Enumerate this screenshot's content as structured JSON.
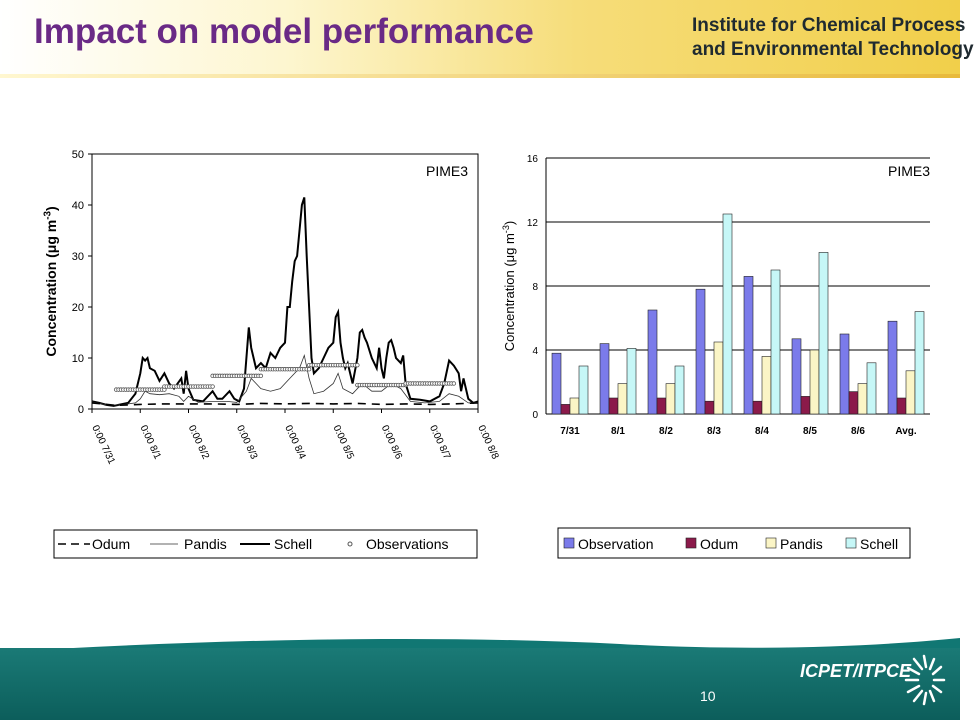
{
  "header": {
    "title": "Impact on model performance",
    "institute_line1": "Institute for Chemical Process",
    "institute_line2": "and Environmental Technology"
  },
  "footer": {
    "page_number": "10",
    "logo_text": "ICPET/ITPCE"
  },
  "colors": {
    "title": "#6a2a86",
    "footer": "#0f6663",
    "observation": "#7b7bea",
    "odum": "#8b1a4a",
    "pandis": "#fbf5c6",
    "schell": "#c6f7f7"
  },
  "chart_data": [
    {
      "type": "line",
      "annotation": "PIME3",
      "ylabel": "Concentration (μg m-3)",
      "ylim": [
        0,
        50
      ],
      "yticks": [
        0,
        10,
        20,
        30,
        40,
        50
      ],
      "xticks": [
        "0:00 7/31",
        "0:00 8/1",
        "0:00 8/2",
        "0:00 8/3",
        "0:00 8/4",
        "0:00 8/5",
        "0:00 8/6",
        "0:00 8/7",
        "0:00 8/8"
      ],
      "xlim": [
        0,
        8
      ],
      "legend_position": "bottom",
      "legend": [
        "Odum",
        "Pandis",
        "Schell",
        "Observations"
      ],
      "series": [
        {
          "name": "Schell",
          "style": "thick-solid",
          "points": [
            [
              0,
              1.5
            ],
            [
              0.15,
              1.2
            ],
            [
              0.3,
              0.8
            ],
            [
              0.45,
              0.6
            ],
            [
              0.6,
              0.9
            ],
            [
              0.75,
              1.2
            ],
            [
              0.9,
              3
            ],
            [
              1.0,
              7
            ],
            [
              1.05,
              10
            ],
            [
              1.1,
              9.5
            ],
            [
              1.15,
              10
            ],
            [
              1.2,
              8
            ],
            [
              1.3,
              7.5
            ],
            [
              1.4,
              5.5
            ],
            [
              1.5,
              7
            ],
            [
              1.6,
              5
            ],
            [
              1.7,
              4
            ],
            [
              1.85,
              6
            ],
            [
              1.9,
              3
            ],
            [
              1.95,
              7.5
            ],
            [
              2.0,
              4
            ],
            [
              2.1,
              1.8
            ],
            [
              2.3,
              1.5
            ],
            [
              2.5,
              3.5
            ],
            [
              2.6,
              2
            ],
            [
              2.7,
              2
            ],
            [
              2.85,
              3.5
            ],
            [
              2.95,
              2
            ],
            [
              3.05,
              1.5
            ],
            [
              3.15,
              4
            ],
            [
              3.25,
              16
            ],
            [
              3.3,
              12
            ],
            [
              3.4,
              8
            ],
            [
              3.5,
              9
            ],
            [
              3.6,
              8
            ],
            [
              3.7,
              11
            ],
            [
              3.8,
              10
            ],
            [
              3.9,
              12
            ],
            [
              4.0,
              13
            ],
            [
              4.05,
              20
            ],
            [
              4.1,
              20
            ],
            [
              4.15,
              25
            ],
            [
              4.2,
              29
            ],
            [
              4.25,
              30
            ],
            [
              4.35,
              40
            ],
            [
              4.4,
              41.5
            ],
            [
              4.45,
              30
            ],
            [
              4.5,
              20
            ],
            [
              4.55,
              10
            ],
            [
              4.6,
              7
            ],
            [
              4.7,
              8
            ],
            [
              4.8,
              10
            ],
            [
              4.9,
              12
            ],
            [
              5.0,
              13
            ],
            [
              5.05,
              18
            ],
            [
              5.1,
              19
            ],
            [
              5.15,
              13
            ],
            [
              5.2,
              10
            ],
            [
              5.25,
              8
            ],
            [
              5.3,
              9
            ],
            [
              5.4,
              5
            ],
            [
              5.5,
              10
            ],
            [
              5.55,
              15
            ],
            [
              5.6,
              15.5
            ],
            [
              5.65,
              14
            ],
            [
              5.7,
              13
            ],
            [
              5.8,
              10
            ],
            [
              5.9,
              8
            ],
            [
              5.95,
              12
            ],
            [
              6.0,
              8
            ],
            [
              6.05,
              6
            ],
            [
              6.1,
              10
            ],
            [
              6.15,
              13
            ],
            [
              6.2,
              13.5
            ],
            [
              6.25,
              12
            ],
            [
              6.3,
              10
            ],
            [
              6.4,
              9
            ],
            [
              6.45,
              10.5
            ],
            [
              6.5,
              5
            ],
            [
              6.6,
              2
            ],
            [
              6.8,
              1.8
            ],
            [
              7.0,
              1.5
            ],
            [
              7.2,
              2.5
            ],
            [
              7.3,
              5
            ],
            [
              7.4,
              9.5
            ],
            [
              7.5,
              8.5
            ],
            [
              7.6,
              7
            ],
            [
              7.65,
              3.5
            ],
            [
              7.7,
              6
            ],
            [
              7.8,
              2
            ],
            [
              7.9,
              1.2
            ],
            [
              8,
              1.5
            ]
          ]
        },
        {
          "name": "Pandis",
          "style": "thin-solid",
          "points": [
            [
              0,
              1.4
            ],
            [
              0.3,
              0.8
            ],
            [
              0.6,
              0.8
            ],
            [
              0.9,
              1.2
            ],
            [
              1.0,
              2
            ],
            [
              1.1,
              3.5
            ],
            [
              1.2,
              3
            ],
            [
              1.4,
              2.8
            ],
            [
              1.6,
              3
            ],
            [
              1.8,
              2.5
            ],
            [
              1.9,
              1.5
            ],
            [
              2.0,
              2.5
            ],
            [
              2.2,
              1.3
            ],
            [
              2.5,
              1.5
            ],
            [
              2.8,
              1.5
            ],
            [
              3.0,
              1.3
            ],
            [
              3.2,
              3.5
            ],
            [
              3.3,
              6
            ],
            [
              3.5,
              4
            ],
            [
              3.7,
              3.5
            ],
            [
              3.9,
              4
            ],
            [
              4.1,
              6
            ],
            [
              4.3,
              8
            ],
            [
              4.4,
              10.5
            ],
            [
              4.5,
              6
            ],
            [
              4.6,
              3
            ],
            [
              4.8,
              3.5
            ],
            [
              5.0,
              5
            ],
            [
              5.1,
              7
            ],
            [
              5.2,
              4
            ],
            [
              5.4,
              3
            ],
            [
              5.6,
              5
            ],
            [
              5.8,
              3.5
            ],
            [
              6.0,
              3.5
            ],
            [
              6.2,
              5
            ],
            [
              6.4,
              4
            ],
            [
              6.6,
              1.5
            ],
            [
              6.9,
              1.2
            ],
            [
              7.2,
              1.5
            ],
            [
              7.4,
              3
            ],
            [
              7.6,
              2.5
            ],
            [
              7.8,
              1.2
            ],
            [
              8,
              1.3
            ]
          ]
        },
        {
          "name": "Odum",
          "style": "dashed",
          "points": [
            [
              0,
              1.2
            ],
            [
              0.5,
              0.7
            ],
            [
              1.0,
              0.9
            ],
            [
              1.5,
              1.0
            ],
            [
              2.0,
              1.0
            ],
            [
              2.5,
              1.0
            ],
            [
              3.0,
              0.9
            ],
            [
              3.5,
              1.1
            ],
            [
              4.0,
              1.0
            ],
            [
              4.5,
              1.1
            ],
            [
              5.0,
              1.0
            ],
            [
              5.5,
              1.1
            ],
            [
              6.0,
              0.9
            ],
            [
              6.5,
              1.0
            ],
            [
              7.0,
              0.9
            ],
            [
              7.5,
              1.0
            ],
            [
              8,
              1.2
            ]
          ]
        },
        {
          "name": "Observations",
          "style": "markers",
          "segments": [
            [
              0.5,
              1.5,
              3.8
            ],
            [
              1.5,
              2.5,
              4.4
            ],
            [
              2.5,
              3.5,
              6.5
            ],
            [
              3.5,
              4.5,
              7.8
            ],
            [
              4.5,
              5.5,
              8.6
            ],
            [
              5.5,
              6.5,
              4.7
            ],
            [
              6.5,
              7.5,
              5.0
            ]
          ]
        }
      ]
    },
    {
      "type": "bar",
      "annotation": "PIME3",
      "ylabel": "Concentration (μg m-3)",
      "ylim": [
        0,
        16
      ],
      "yticks": [
        0,
        4,
        8,
        12,
        16
      ],
      "grid": true,
      "legend_position": "bottom",
      "categories": [
        "7/31",
        "8/1",
        "8/2",
        "8/3",
        "8/4",
        "8/5",
        "8/6",
        "Avg."
      ],
      "series": [
        {
          "name": "Observation",
          "values": [
            3.8,
            4.4,
            6.5,
            7.8,
            8.6,
            4.7,
            5.0,
            5.8
          ]
        },
        {
          "name": "Odum",
          "values": [
            0.6,
            1.0,
            1.0,
            0.8,
            0.8,
            1.1,
            1.4,
            1.0
          ]
        },
        {
          "name": "Pandis",
          "values": [
            1.0,
            1.9,
            1.9,
            4.5,
            3.6,
            4.0,
            1.9,
            2.7
          ]
        },
        {
          "name": "Schell",
          "values": [
            3.0,
            4.1,
            3.0,
            12.5,
            9.0,
            10.1,
            3.2,
            6.4
          ]
        }
      ]
    }
  ]
}
